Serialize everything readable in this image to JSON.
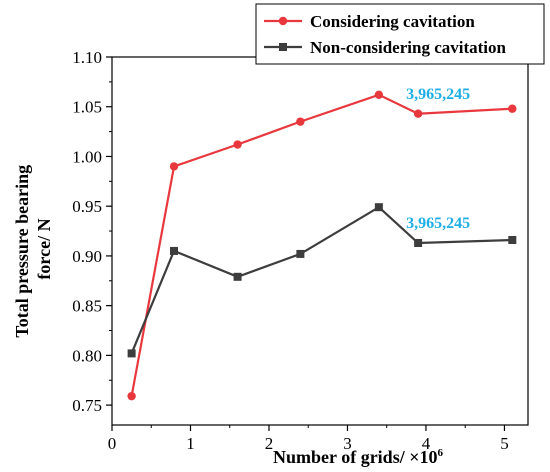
{
  "chart_data": {
    "type": "line",
    "xlabel": "Number of grids/ ×10",
    "xlabel_sup": "6",
    "ylabel_lines": [
      "Total pressure bearing",
      "force/ N"
    ],
    "xlim": [
      0,
      5.3
    ],
    "ylim": [
      0.73,
      1.1
    ],
    "xticks": [
      0,
      1,
      2,
      3,
      4,
      5
    ],
    "yticks": [
      0.75,
      0.8,
      0.85,
      0.9,
      0.95,
      1.0,
      1.05,
      1.1
    ],
    "ytick_labels": [
      "0.75",
      "0.80",
      "0.85",
      "0.90",
      "0.95",
      "1.00",
      "1.05",
      "1.10"
    ],
    "x": [
      0.25,
      0.79,
      1.6,
      2.4,
      3.4,
      3.9,
      5.1
    ],
    "series": [
      {
        "name": "Considering cavitation",
        "color": "#e8383d",
        "marker": "circle",
        "values": [
          0.759,
          0.99,
          1.012,
          1.035,
          1.062,
          1.043,
          1.048
        ]
      },
      {
        "name": "Non-considering cavitation",
        "color": "#3d3d3d",
        "marker": "square",
        "values": [
          0.802,
          0.905,
          0.879,
          0.902,
          0.949,
          0.913,
          0.916
        ]
      }
    ],
    "annotations": [
      {
        "text": "3,965,245",
        "x": 3.9,
        "y": 1.062,
        "color": "#1eaee6"
      },
      {
        "text": "3,965,245",
        "x": 3.9,
        "y": 0.932,
        "color": "#1eaee6"
      }
    ],
    "legend_position": "top-right",
    "grid": false
  }
}
